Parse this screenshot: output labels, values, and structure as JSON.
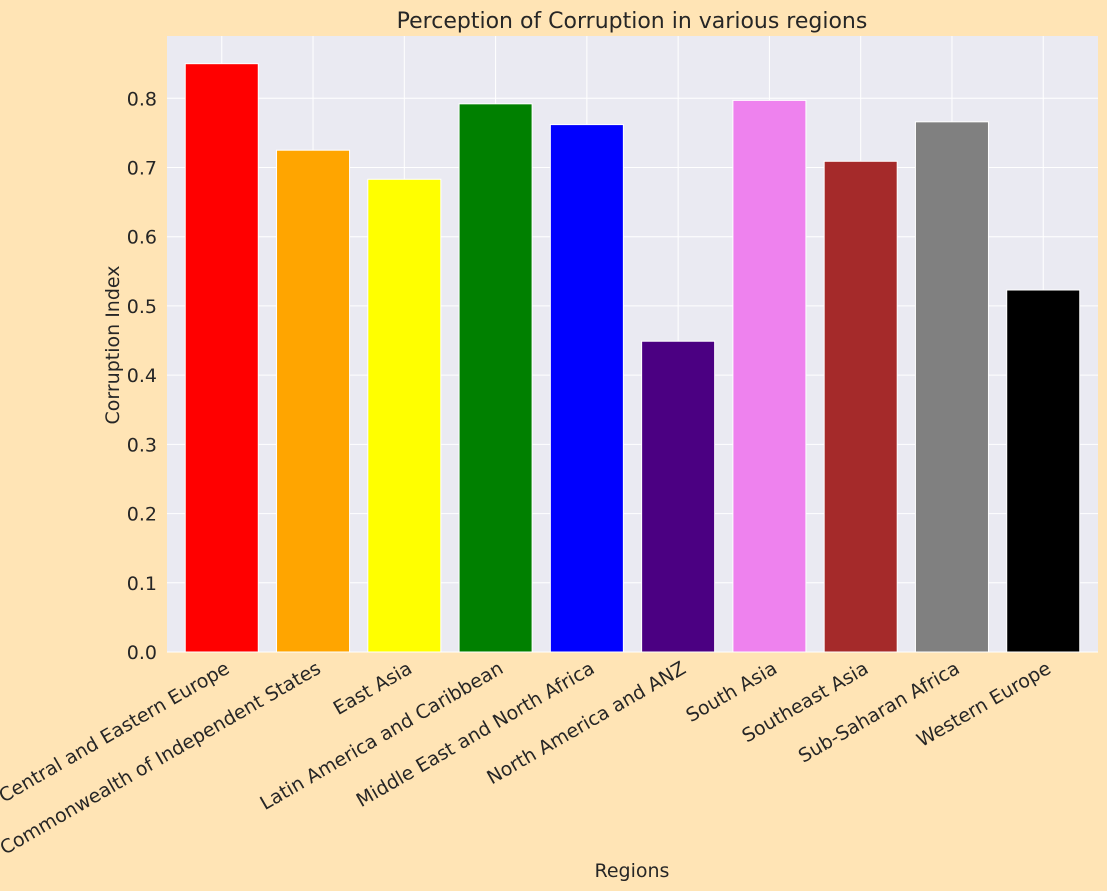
{
  "chart_data": {
    "type": "bar",
    "title": "Perception of Corruption in various regions",
    "xlabel": "Regions",
    "ylabel": "Corruption Index",
    "categories": [
      "Central and Eastern Europe",
      "Commonwealth of Independent States",
      "East Asia",
      "Latin America and Caribbean",
      "Middle East and North Africa",
      "North America and ANZ",
      "South Asia",
      "Southeast Asia",
      "Sub-Saharan Africa",
      "Western Europe"
    ],
    "values": [
      0.85,
      0.725,
      0.683,
      0.792,
      0.762,
      0.449,
      0.797,
      0.709,
      0.766,
      0.523
    ],
    "colors": [
      "#ff0000",
      "#ffa500",
      "#ffff00",
      "#008000",
      "#0000ff",
      "#4b0082",
      "#ee82ee",
      "#a52a2a",
      "#808080",
      "#000000"
    ],
    "ylim": [
      0,
      0.89
    ],
    "yticks": [
      "0.0",
      "0.1",
      "0.2",
      "0.3",
      "0.4",
      "0.5",
      "0.6",
      "0.7",
      "0.8"
    ],
    "grid": true
  }
}
